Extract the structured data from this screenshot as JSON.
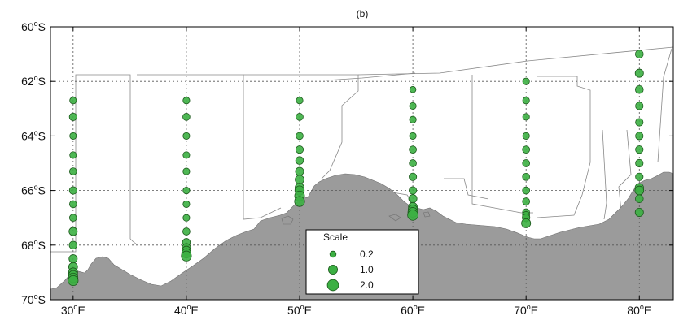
{
  "panel_label": "(b)",
  "map": {
    "lon_range": [
      28,
      83
    ],
    "lat_range": [
      -70,
      -60
    ],
    "lon_ticks": [
      {
        "value": 30,
        "deg": "30",
        "hemi": "E"
      },
      {
        "value": 40,
        "deg": "40",
        "hemi": "E"
      },
      {
        "value": 50,
        "deg": "50",
        "hemi": "E"
      },
      {
        "value": 60,
        "deg": "60",
        "hemi": "E"
      },
      {
        "value": 70,
        "deg": "70",
        "hemi": "E"
      },
      {
        "value": 80,
        "deg": "80",
        "hemi": "E"
      }
    ],
    "lat_ticks": [
      {
        "value": -60,
        "deg": "60",
        "hemi": "S"
      },
      {
        "value": -62,
        "deg": "62",
        "hemi": "S"
      },
      {
        "value": -64,
        "deg": "64",
        "hemi": "S"
      },
      {
        "value": -66,
        "deg": "66",
        "hemi": "S"
      },
      {
        "value": -68,
        "deg": "68",
        "hemi": "S"
      },
      {
        "value": -70,
        "deg": "70",
        "hemi": "S"
      }
    ],
    "grid": "dotted",
    "land_color": "#9b9b9b",
    "marker_fill": "#3cb043",
    "marker_stroke": "#1d5a1d"
  },
  "legend": {
    "title": "Scale",
    "position": "bottom-center",
    "entries": [
      {
        "label": "0.2",
        "value": 0.2
      },
      {
        "label": "1.0",
        "value": 1.0
      },
      {
        "label": "2.0",
        "value": 2.0
      }
    ]
  },
  "chart_data": {
    "type": "scatter",
    "description_units": "longitude (deg E), latitude (deg, negative = S), scaled magnitude",
    "transects": [
      {
        "lon": 30,
        "points": [
          [
            -62.7,
            0.3
          ],
          [
            -63.3,
            0.5
          ],
          [
            -64.0,
            0.3
          ],
          [
            -64.7,
            0.3
          ],
          [
            -65.3,
            0.4
          ],
          [
            -66.0,
            0.5
          ],
          [
            -66.5,
            0.4
          ],
          [
            -67.0,
            0.4
          ],
          [
            -67.5,
            0.7
          ],
          [
            -68.0,
            0.6
          ],
          [
            -68.5,
            0.7
          ],
          [
            -68.8,
            0.9
          ],
          [
            -69.0,
            1.0
          ],
          [
            -69.1,
            1.0
          ],
          [
            -69.2,
            1.2
          ],
          [
            -69.3,
            1.4
          ]
        ]
      },
      {
        "lon": 40,
        "points": [
          [
            -62.7,
            0.3
          ],
          [
            -63.3,
            0.4
          ],
          [
            -64.0,
            0.3
          ],
          [
            -64.7,
            0.3
          ],
          [
            -65.3,
            0.3
          ],
          [
            -66.0,
            0.3
          ],
          [
            -66.5,
            0.3
          ],
          [
            -67.0,
            0.3
          ],
          [
            -67.5,
            0.4
          ],
          [
            -67.9,
            0.6
          ],
          [
            -68.1,
            0.8
          ],
          [
            -68.2,
            0.9
          ],
          [
            -68.3,
            1.1
          ],
          [
            -68.4,
            1.4
          ]
        ]
      },
      {
        "lon": 50,
        "points": [
          [
            -62.7,
            0.3
          ],
          [
            -63.3,
            0.4
          ],
          [
            -64.0,
            0.4
          ],
          [
            -64.5,
            0.5
          ],
          [
            -64.9,
            0.6
          ],
          [
            -65.3,
            0.7
          ],
          [
            -65.6,
            0.9
          ],
          [
            -65.9,
            1.0
          ],
          [
            -66.0,
            1.1
          ],
          [
            -66.2,
            1.3
          ],
          [
            -66.4,
            1.4
          ]
        ]
      },
      {
        "lon": 60,
        "points": [
          [
            -62.3,
            0.2
          ],
          [
            -62.9,
            0.3
          ],
          [
            -63.4,
            0.3
          ],
          [
            -64.0,
            0.3
          ],
          [
            -64.5,
            0.4
          ],
          [
            -65.0,
            0.4
          ],
          [
            -65.5,
            0.5
          ],
          [
            -66.0,
            0.5
          ],
          [
            -66.3,
            0.7
          ],
          [
            -66.6,
            0.9
          ],
          [
            -66.7,
            1.1
          ],
          [
            -66.8,
            1.3
          ],
          [
            -66.9,
            1.6
          ]
        ]
      },
      {
        "lon": 70,
        "points": [
          [
            -62.0,
            0.3
          ],
          [
            -62.7,
            0.3
          ],
          [
            -63.3,
            0.3
          ],
          [
            -64.0,
            0.3
          ],
          [
            -64.5,
            0.4
          ],
          [
            -65.0,
            0.4
          ],
          [
            -65.5,
            0.4
          ],
          [
            -66.0,
            0.4
          ],
          [
            -66.4,
            0.4
          ],
          [
            -66.8,
            0.4
          ],
          [
            -66.9,
            0.4
          ],
          [
            -67.0,
            0.5
          ],
          [
            -67.2,
            1.0
          ]
        ]
      },
      {
        "lon": 80,
        "points": [
          [
            -61.0,
            0.6
          ],
          [
            -61.7,
            0.7
          ],
          [
            -62.3,
            0.6
          ],
          [
            -62.9,
            0.5
          ],
          [
            -63.5,
            0.5
          ],
          [
            -64.0,
            0.5
          ],
          [
            -64.5,
            0.5
          ],
          [
            -65.0,
            0.5
          ],
          [
            -65.5,
            0.5
          ],
          [
            -65.9,
            0.8
          ],
          [
            -66.0,
            0.9
          ],
          [
            -66.3,
            0.6
          ],
          [
            -66.8,
            0.7
          ]
        ]
      }
    ]
  }
}
